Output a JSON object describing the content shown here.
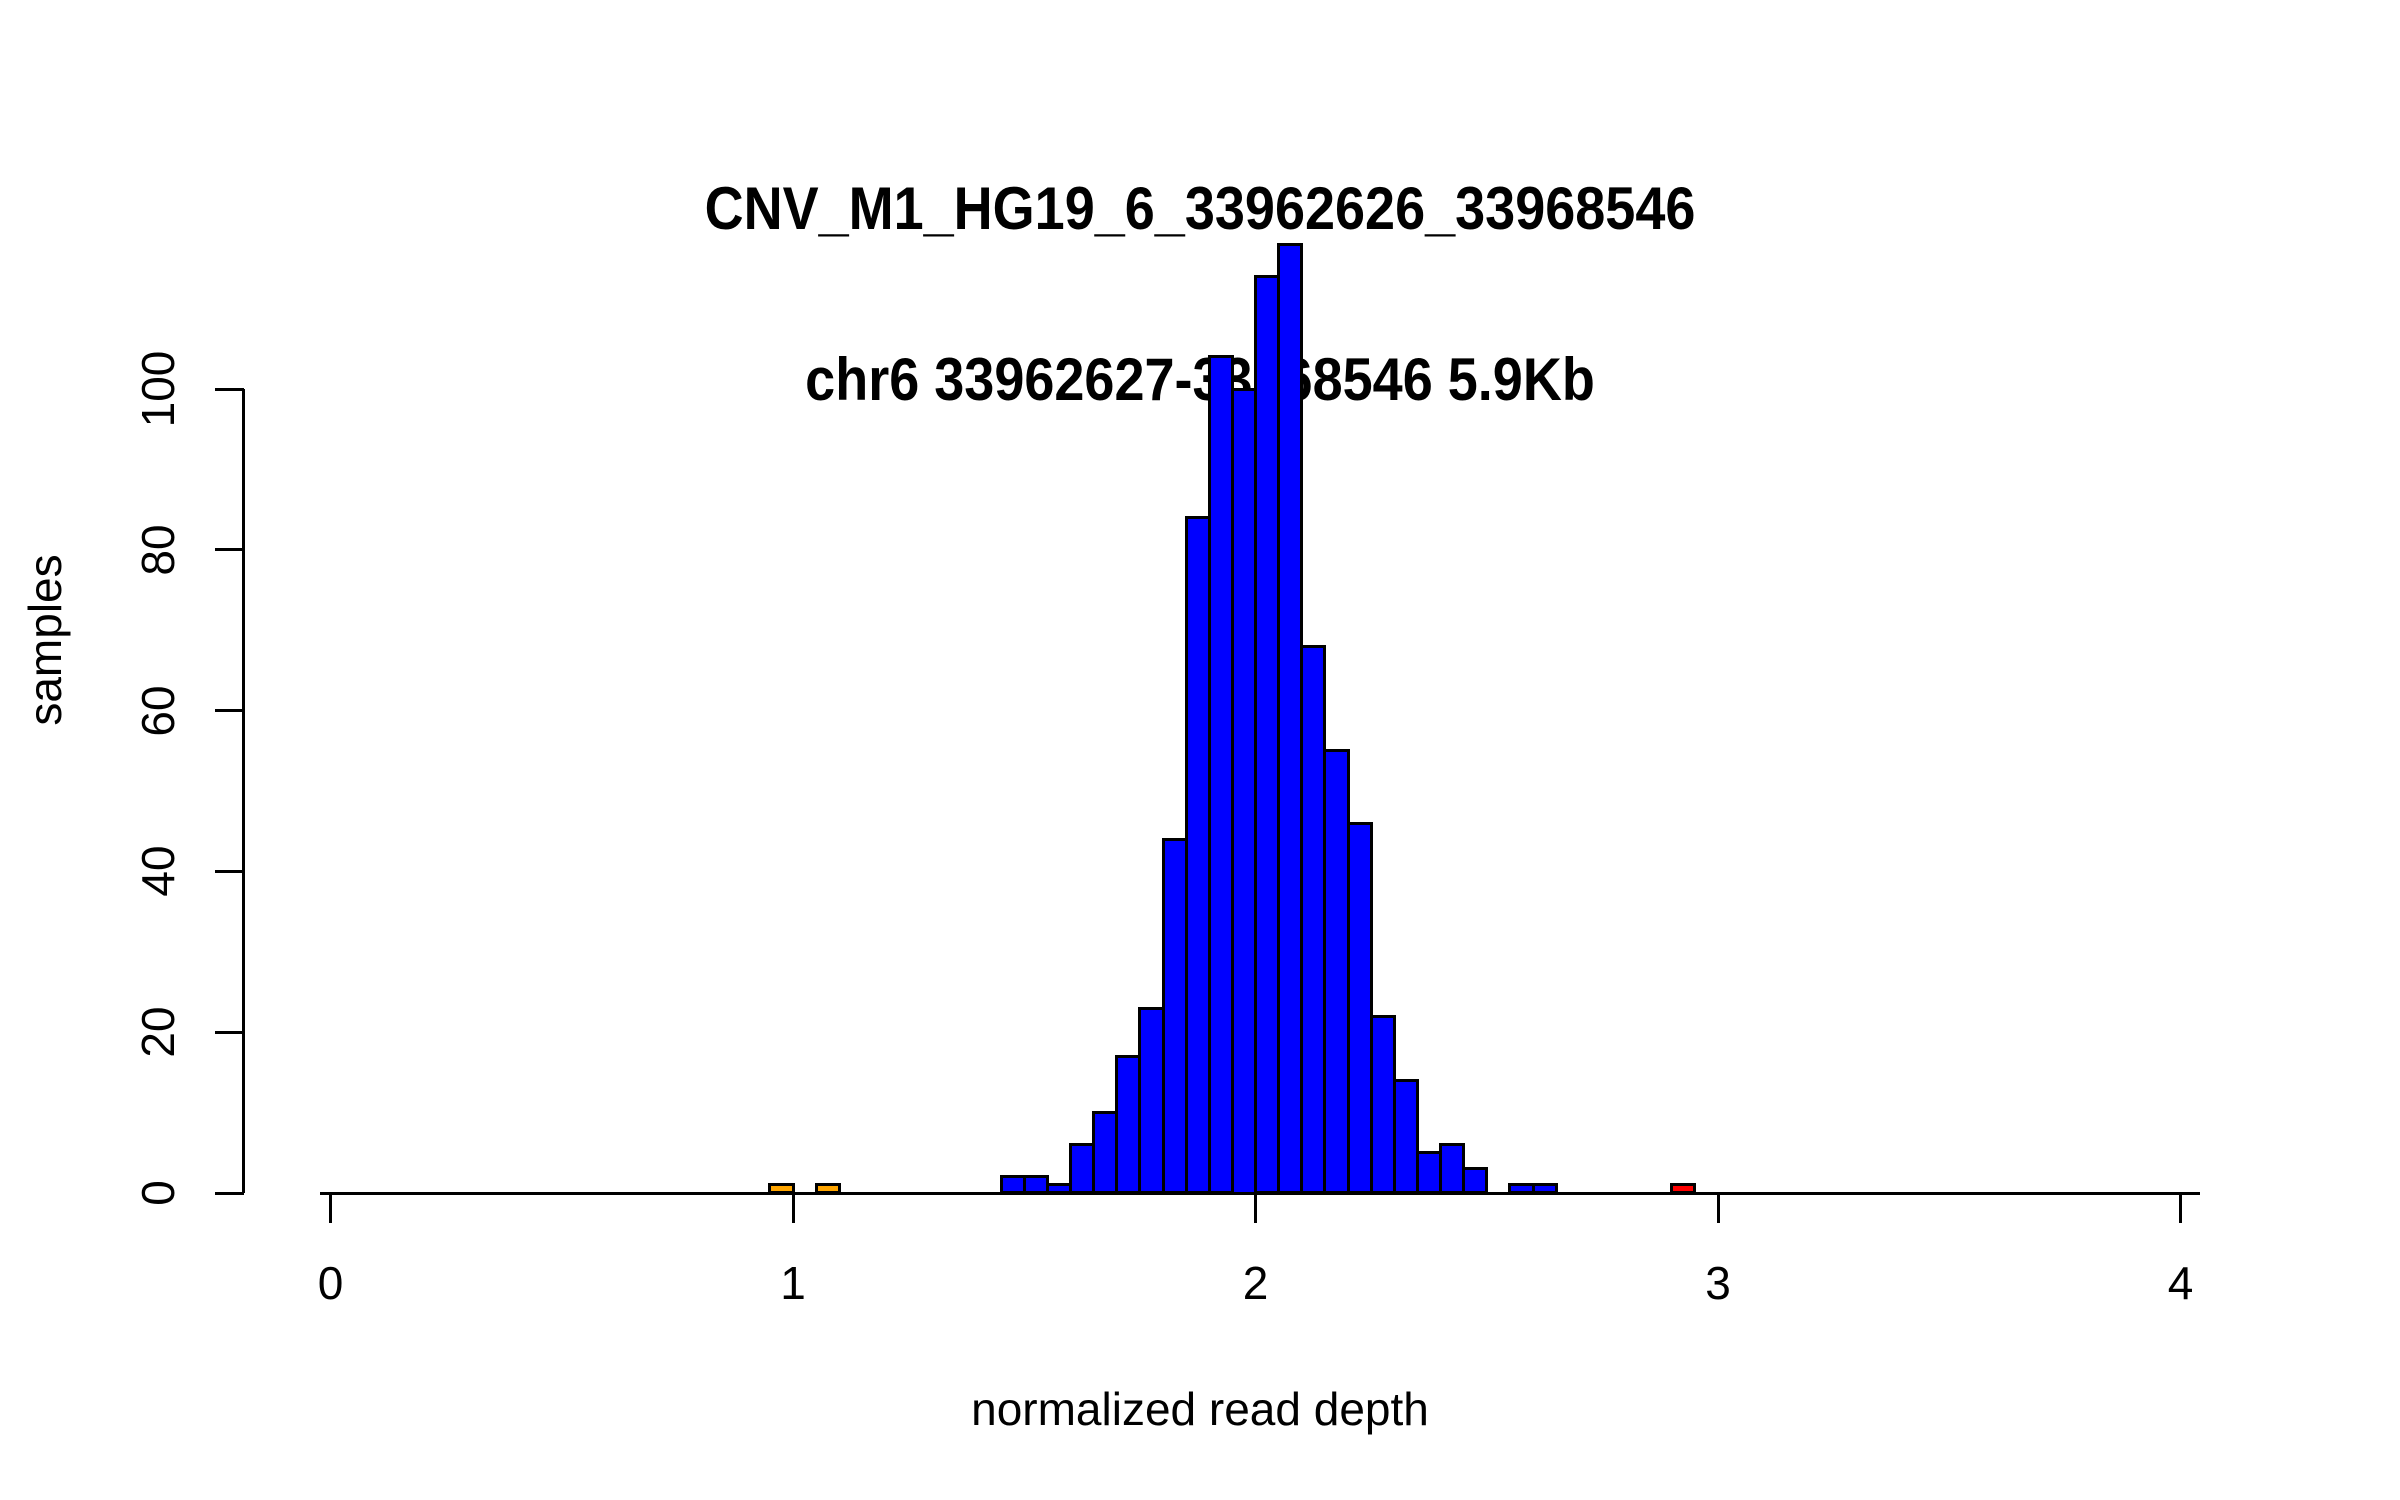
{
  "chart_data": {
    "type": "bar",
    "variant": "histogram",
    "title": "CNV_M1_HG19_6_33962626_33968546",
    "subtitle": "chr6 33962627-33968546 5.9Kb",
    "xlabel": "normalized read depth",
    "ylabel": "samples",
    "xlim": [
      0,
      4
    ],
    "ylim": [
      0,
      118
    ],
    "x_ticks": [
      0,
      1,
      2,
      3,
      4
    ],
    "y_ticks": [
      0,
      20,
      40,
      60,
      80,
      100
    ],
    "grid": false,
    "legend": "none",
    "bin_width": 0.05,
    "palette": {
      "blue": "#0000FF",
      "orange": "#FFA500",
      "red": "#FF0000",
      "border": "#000000"
    },
    "bins": [
      {
        "start": 0.95,
        "count": 1,
        "color": "orange"
      },
      {
        "start": 1.05,
        "count": 1,
        "color": "orange"
      },
      {
        "start": 1.45,
        "count": 2,
        "color": "blue"
      },
      {
        "start": 1.5,
        "count": 2,
        "color": "blue"
      },
      {
        "start": 1.55,
        "count": 1,
        "color": "blue"
      },
      {
        "start": 1.6,
        "count": 6,
        "color": "blue"
      },
      {
        "start": 1.65,
        "count": 10,
        "color": "blue"
      },
      {
        "start": 1.7,
        "count": 17,
        "color": "blue"
      },
      {
        "start": 1.75,
        "count": 23,
        "color": "blue"
      },
      {
        "start": 1.8,
        "count": 44,
        "color": "blue"
      },
      {
        "start": 1.85,
        "count": 84,
        "color": "blue"
      },
      {
        "start": 1.9,
        "count": 104,
        "color": "blue"
      },
      {
        "start": 1.95,
        "count": 100,
        "color": "blue"
      },
      {
        "start": 2.0,
        "count": 114,
        "color": "blue"
      },
      {
        "start": 2.05,
        "count": 118,
        "color": "blue"
      },
      {
        "start": 2.1,
        "count": 68,
        "color": "blue"
      },
      {
        "start": 2.15,
        "count": 55,
        "color": "blue"
      },
      {
        "start": 2.2,
        "count": 46,
        "color": "blue"
      },
      {
        "start": 2.25,
        "count": 22,
        "color": "blue"
      },
      {
        "start": 2.3,
        "count": 14,
        "color": "blue"
      },
      {
        "start": 2.35,
        "count": 5,
        "color": "blue"
      },
      {
        "start": 2.4,
        "count": 6,
        "color": "blue"
      },
      {
        "start": 2.45,
        "count": 3,
        "color": "blue"
      },
      {
        "start": 2.55,
        "count": 1,
        "color": "blue"
      },
      {
        "start": 2.6,
        "count": 1,
        "color": "blue"
      },
      {
        "start": 2.9,
        "count": 1,
        "color": "red"
      }
    ]
  }
}
